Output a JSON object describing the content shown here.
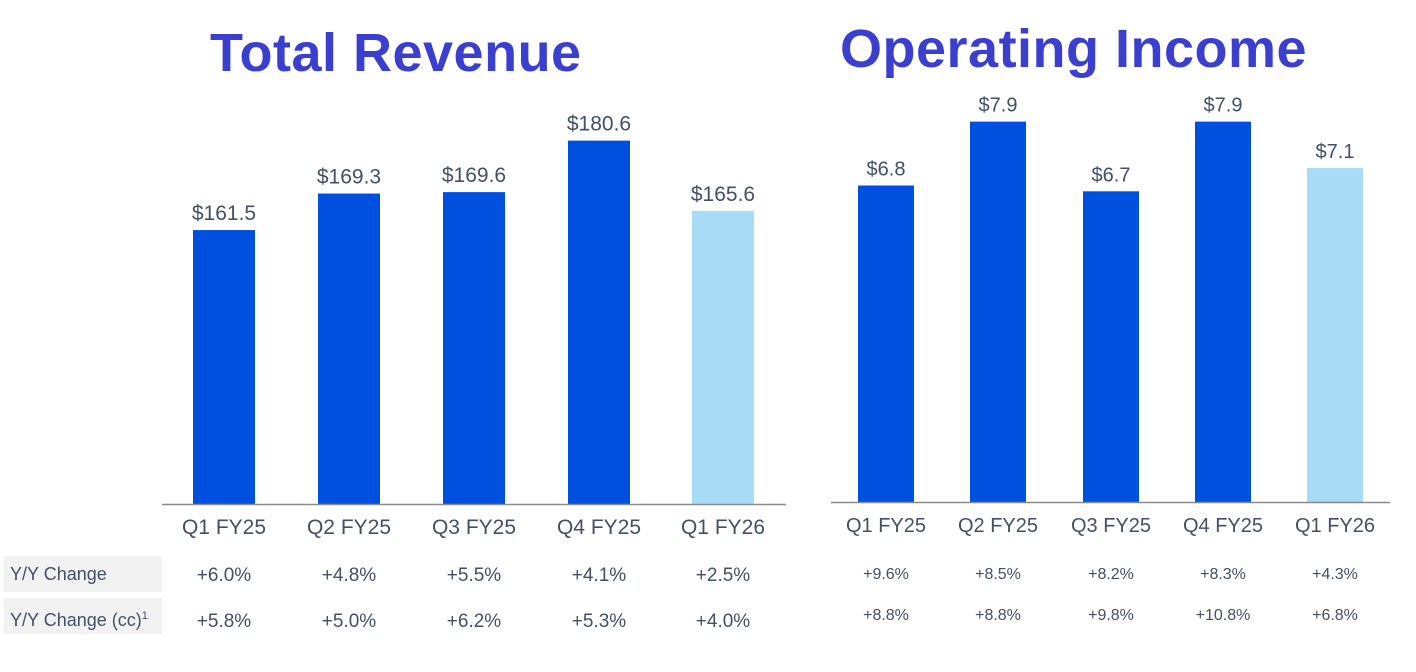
{
  "chart_data": [
    {
      "type": "bar",
      "title": "Total Revenue",
      "categories": [
        "Q1 FY25",
        "Q2 FY25",
        "Q3 FY25",
        "Q4 FY25",
        "Q1 FY26"
      ],
      "values": [
        161.5,
        169.3,
        169.6,
        180.6,
        165.6
      ],
      "data_labels": [
        "$161.5",
        "$169.3",
        "$169.6",
        "$180.6",
        "$165.6"
      ],
      "colors": [
        "#0050e0",
        "#0050e0",
        "#0050e0",
        "#0050e0",
        "#a8dcf6"
      ],
      "ylim": [
        103,
        185
      ],
      "grid": false
    },
    {
      "type": "bar",
      "title": "Operating Income",
      "categories": [
        "Q1 FY25",
        "Q2 FY25",
        "Q3 FY25",
        "Q4 FY25",
        "Q1 FY26"
      ],
      "values": [
        6.8,
        7.9,
        6.7,
        7.9,
        7.1
      ],
      "data_labels": [
        "$6.8",
        "$7.9",
        "$6.7",
        "$7.9",
        "$7.1"
      ],
      "colors": [
        "#0050e0",
        "#0050e0",
        "#0050e0",
        "#0050e0",
        "#a8dcf6"
      ],
      "ylim": [
        1.35,
        8.1
      ],
      "grid": false
    }
  ],
  "table": {
    "row_labels": [
      "Y/Y Change",
      "Y/Y Change (cc)"
    ],
    "footnote_mark": "1",
    "revenue_yy": [
      "+6.0%",
      "+4.8%",
      "+5.5%",
      "+4.1%",
      "+2.5%"
    ],
    "revenue_yy_cc": [
      "+5.8%",
      "+5.0%",
      "+6.2%",
      "+5.3%",
      "+4.0%"
    ],
    "opinc_yy": [
      "+9.6%",
      "+8.5%",
      "+8.2%",
      "+8.3%",
      "+4.3%"
    ],
    "opinc_yy_cc": [
      "+8.8%",
      "+8.8%",
      "+9.8%",
      "+10.8%",
      "+6.8%"
    ]
  },
  "colors": {
    "bar": "#0050e0",
    "bar_current": "#a8dcf6",
    "title": "#3b3fd0",
    "text": "#445064",
    "axis": "#8a8a8a"
  }
}
